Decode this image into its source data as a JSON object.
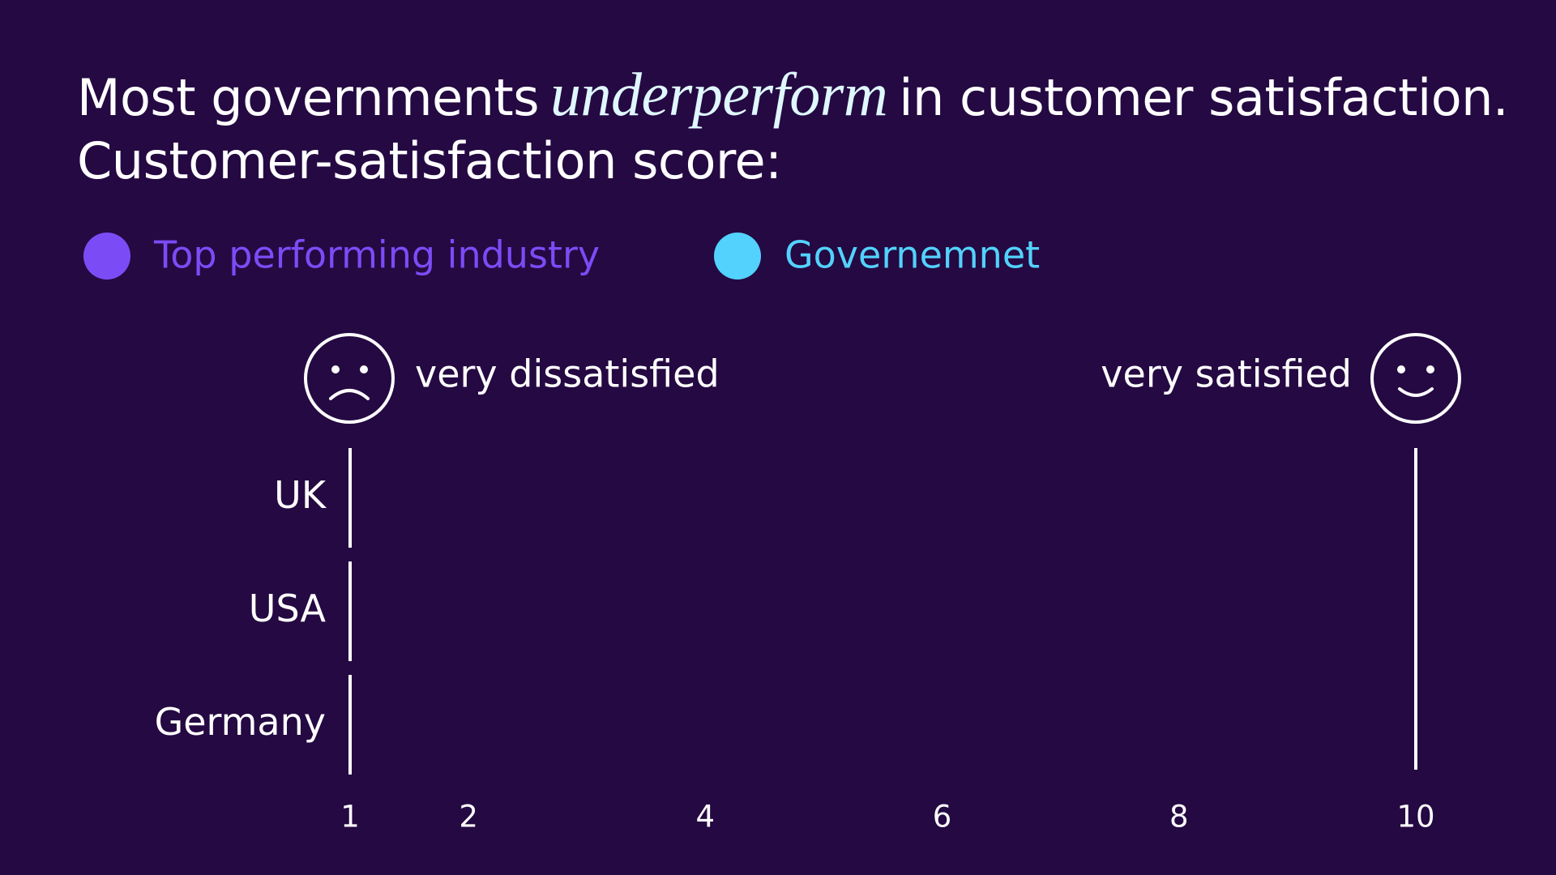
{
  "chart_data": {
    "type": "dot",
    "title": [
      "Most governments",
      "underperform",
      "in customer satisfaction."
    ],
    "subtitle": "Customer-satisfaction score:",
    "annotations": [
      "very dissatisfied",
      "very satisfied"
    ],
    "categories": [
      "UK",
      "USA",
      "Germany"
    ],
    "series": [
      {
        "name": "Top performing industry",
        "color": "#7b4cf6"
      },
      {
        "name": "Governemnet",
        "color": "#52d2fc"
      }
    ],
    "xlim": [
      1,
      10
    ],
    "xticks": [
      1,
      2,
      4,
      6,
      8,
      10
    ]
  }
}
